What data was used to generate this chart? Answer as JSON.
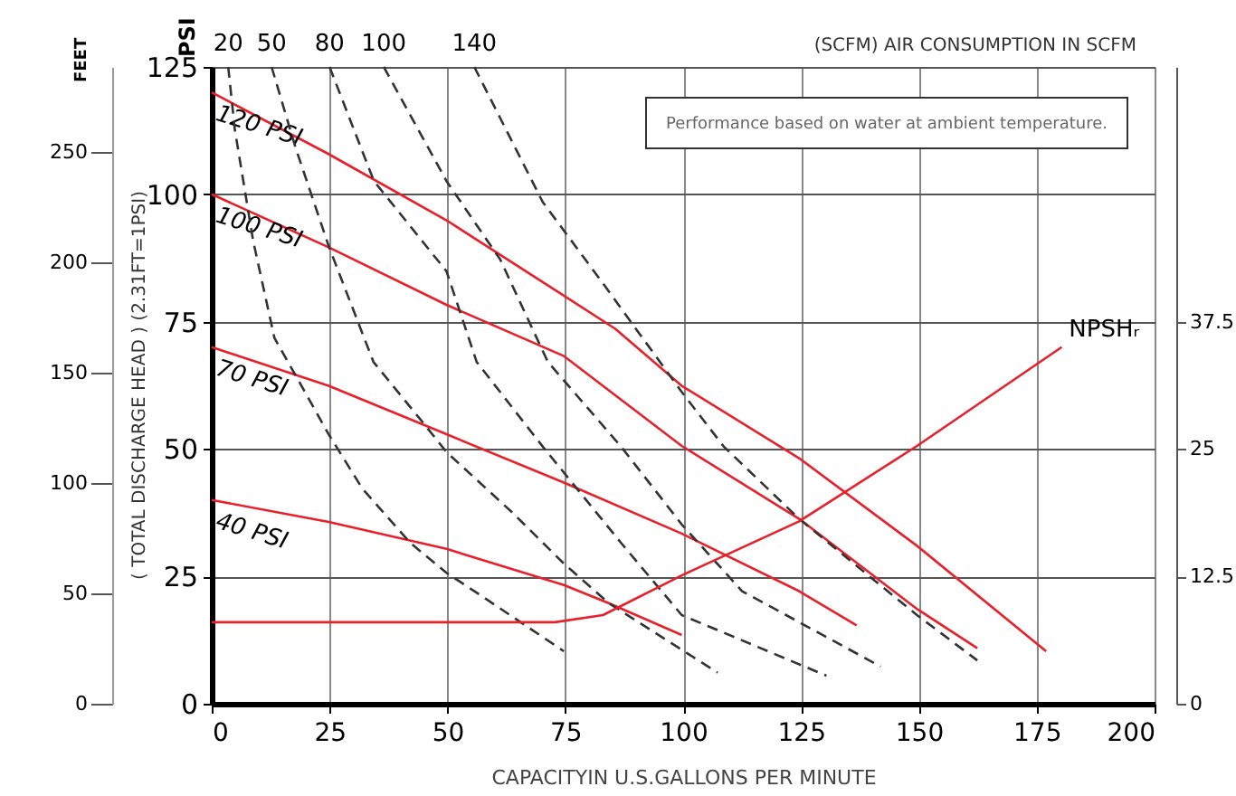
{
  "chart_data": {
    "type": "line",
    "xlabel": "CAPACITYIN U.S.GALLONS PER MINUTE",
    "ylabel": "PSI",
    "y3label": "FEET",
    "xlim": [
      0,
      200
    ],
    "xticks": [
      0,
      25,
      50,
      75,
      100,
      125,
      150,
      175,
      200
    ],
    "ylim": [
      0,
      125
    ],
    "yticks": [
      0,
      25,
      50,
      75,
      100,
      125
    ],
    "y2lim": [
      0,
      62.5
    ],
    "y2ticks": [
      0,
      12.5,
      25,
      37.5
    ],
    "y3lim": [
      0,
      288.75
    ],
    "y3ticks": [
      0,
      50,
      100,
      150,
      200,
      250
    ],
    "grid": true,
    "marker": "none",
    "annotations": [
      "Performance based on water at ambient temperature.",
      "( TOTAL DISCHARGE HEAD )  (2.31FT=1PSI)",
      "(SCFM)  AIR CONSUMPTION IN SCFM"
    ],
    "series": [
      {
        "name": "120 PSI",
        "color": "#e8202a",
        "line_style": "solid",
        "x": [
          0,
          24.6,
          49.8,
          74.7,
          85.6,
          99.7,
          124.6,
          149.6,
          177
        ],
        "values": [
          120,
          108,
          94.9,
          80.1,
          73.6,
          62.4,
          48.2,
          31,
          10.3
        ]
      },
      {
        "name": "100 PSI",
        "color": "#e8202a",
        "line_style": "solid",
        "x": [
          0,
          24.8,
          49.8,
          74.6,
          99.7,
          124.6,
          149.6,
          162.4
        ],
        "values": [
          100,
          89.6,
          78.3,
          68.3,
          50.6,
          36.3,
          18.6,
          10.9
        ]
      },
      {
        "name": "70 PSI",
        "color": "#e8202a",
        "line_style": "solid",
        "x": [
          0,
          24.8,
          49.8,
          74.7,
          99.7,
          124.6,
          136.8
        ],
        "values": [
          70,
          62.4,
          52.9,
          43.4,
          33.4,
          22.1,
          15.4
        ]
      },
      {
        "name": "40 PSI",
        "color": "#e8202a",
        "line_style": "solid",
        "x": [
          0,
          24.8,
          49.8,
          74.7,
          84.3,
          99.7
        ],
        "values": [
          40,
          35.7,
          30.4,
          23.3,
          19.7,
          13.5
        ]
      },
      {
        "name": "20",
        "color": "#333333",
        "line_style": "dashed",
        "x": [
          3.5,
          4.9,
          8.8,
          13.3,
          17.7,
          24.8,
          31.9,
          42.1,
          49.8,
          57.5,
          74.7
        ],
        "values": [
          125,
          112.7,
          90.8,
          71.8,
          64.6,
          52.9,
          42.3,
          31.6,
          25.7,
          21,
          10.3
        ]
      },
      {
        "name": "50",
        "color": "#333333",
        "line_style": "dashed",
        "x": [
          12.7,
          17.8,
          24.9,
          34.3,
          44.7,
          49.8,
          63.8,
          74.7,
          84.3,
          107.3
        ],
        "values": [
          125,
          109.1,
          89.6,
          67.1,
          55.3,
          49.4,
          37.5,
          27.5,
          19.7,
          6.1
        ]
      },
      {
        "name": "80",
        "color": "#333333",
        "line_style": "dashed",
        "x": [
          25,
          34.4,
          49.8,
          56.2,
          70.2,
          86.8,
          99.7,
          130.4
        ],
        "values": [
          125,
          102.6,
          84.9,
          67.1,
          50.5,
          31.6,
          17.4,
          5.5
        ]
      },
      {
        "name": "100",
        "color": "#333333",
        "line_style": "dashed",
        "x": [
          36.5,
          49.8,
          61.2,
          71.3,
          86.8,
          99.7,
          112.5,
          141.9
        ],
        "values": [
          125,
          102.6,
          87.2,
          67.1,
          50.5,
          35.2,
          22.1,
          7.3
        ]
      },
      {
        "name": "140",
        "color": "#333333",
        "line_style": "dashed",
        "x": [
          55.7,
          70.2,
          83,
          99.7,
          108.6,
          124.6,
          149.6,
          162.4
        ],
        "values": [
          125,
          98.5,
          82.5,
          61.2,
          50.5,
          36.3,
          17.4,
          8.5
        ]
      },
      {
        "name": "NPSHᵣ",
        "color": "#e8202a",
        "line_style": "solid",
        "axis": "y2",
        "x": [
          0,
          72.8,
          83,
          99.7,
          124.6,
          149.6,
          180.3
        ],
        "values": [
          8,
          8,
          8.7,
          12.6,
          17.9,
          25.3,
          35
        ]
      }
    ]
  }
}
